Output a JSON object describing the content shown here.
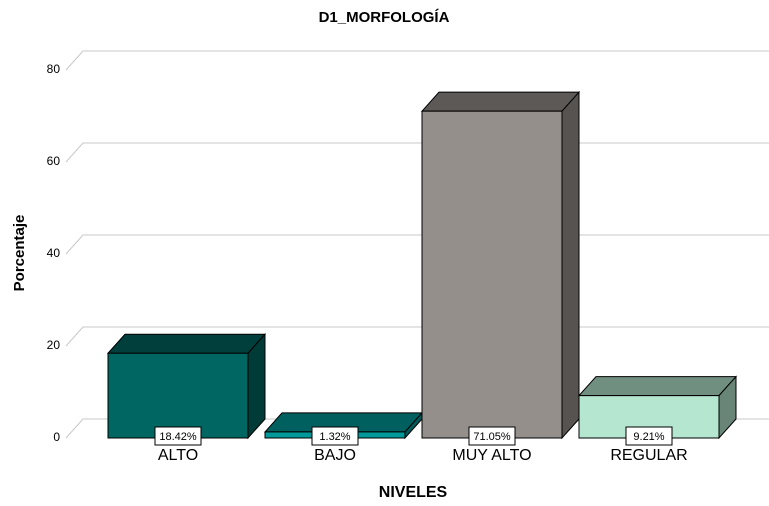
{
  "chart_data": {
    "type": "bar3d",
    "title": "D1_MORFOLOGÍA",
    "x_label": "NIVELES",
    "y_label": "Porcentaje",
    "categories": [
      "ALTO",
      "BAJO",
      "MUY ALTO",
      "REGULAR"
    ],
    "values": [
      18.42,
      1.32,
      71.05,
      9.21
    ],
    "value_labels": [
      "18.42%",
      "1.32%",
      "71.05%",
      "9.21%"
    ],
    "colors": [
      "#006661",
      "#009999",
      "#958f8c",
      "#b5e6cf"
    ],
    "ylim": [
      0,
      80
    ],
    "yticks": [
      0,
      20,
      40,
      60,
      80
    ],
    "grid": true
  }
}
